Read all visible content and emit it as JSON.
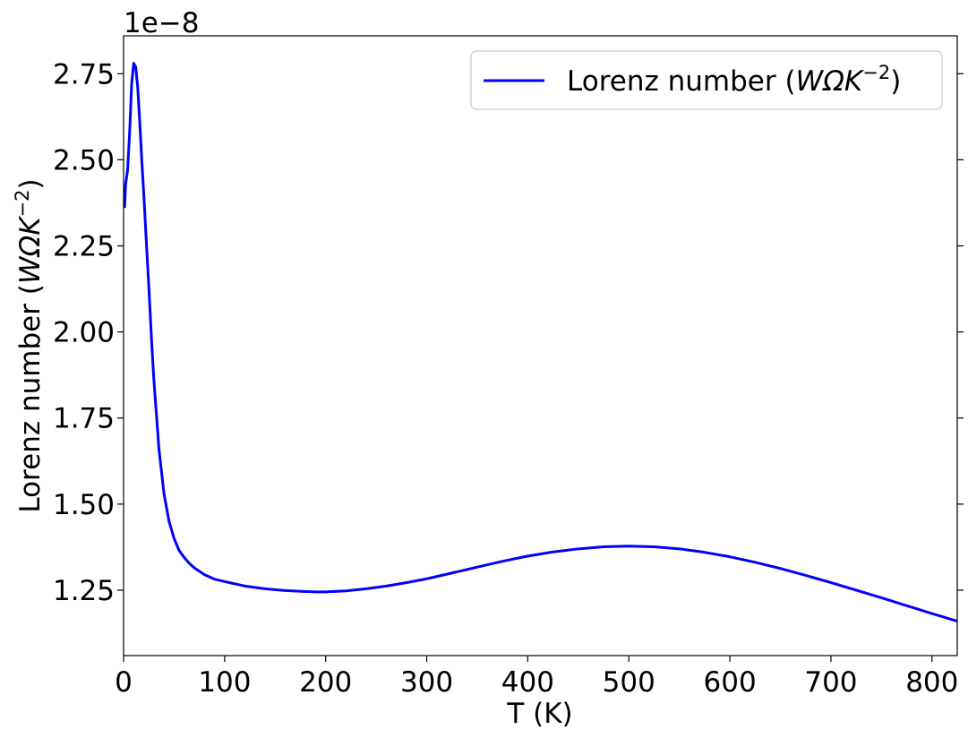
{
  "chart_data": {
    "type": "line",
    "title": "",
    "xlabel": "T (K)",
    "ylabel_main": "Lorenz number (",
    "ylabel_italic": "WΩK",
    "ylabel_sup": "−2",
    "ylabel_end": ")",
    "y_offset_text": "1e−8",
    "xlim": [
      0,
      825
    ],
    "ylim": [
      1.06,
      2.86
    ],
    "y_scale_note": "values shown ×1e−8",
    "xticks": [
      0,
      100,
      200,
      300,
      400,
      500,
      600,
      700,
      800
    ],
    "xtick_labels": [
      "0",
      "100",
      "200",
      "300",
      "400",
      "500",
      "600",
      "700",
      "800"
    ],
    "yticks": [
      1.25,
      1.5,
      1.75,
      2.0,
      2.25,
      2.5,
      2.75
    ],
    "ytick_labels": [
      "1.25",
      "1.50",
      "1.75",
      "2.00",
      "2.25",
      "2.50",
      "2.75"
    ],
    "grid": false,
    "legend": {
      "position": "upper right",
      "label_main": "Lorenz number (",
      "label_italic": "WΩK",
      "label_sup": "−2",
      "label_end": ")"
    },
    "series": [
      {
        "name": "Lorenz number (WΩK−2)",
        "color": "#0000ff",
        "x": [
          1,
          2,
          4,
          6,
          8,
          10,
          12,
          14,
          16,
          18,
          20,
          22,
          25,
          28,
          30,
          35,
          40,
          45,
          50,
          55,
          60,
          65,
          70,
          80,
          90,
          100,
          120,
          140,
          160,
          180,
          190,
          200,
          220,
          240,
          260,
          280,
          300,
          325,
          350,
          375,
          400,
          425,
          450,
          475,
          500,
          525,
          550,
          575,
          600,
          625,
          650,
          675,
          700,
          725,
          750,
          775,
          800,
          825
        ],
        "y": [
          2.36,
          2.43,
          2.47,
          2.58,
          2.72,
          2.78,
          2.77,
          2.71,
          2.61,
          2.5,
          2.4,
          2.29,
          2.13,
          1.96,
          1.86,
          1.66,
          1.53,
          1.45,
          1.4,
          1.365,
          1.345,
          1.328,
          1.315,
          1.295,
          1.282,
          1.275,
          1.262,
          1.254,
          1.249,
          1.246,
          1.245,
          1.245,
          1.248,
          1.254,
          1.262,
          1.272,
          1.283,
          1.3,
          1.317,
          1.334,
          1.349,
          1.361,
          1.37,
          1.376,
          1.378,
          1.376,
          1.37,
          1.36,
          1.347,
          1.331,
          1.313,
          1.293,
          1.272,
          1.25,
          1.228,
          1.205,
          1.182,
          1.16
        ]
      }
    ]
  }
}
